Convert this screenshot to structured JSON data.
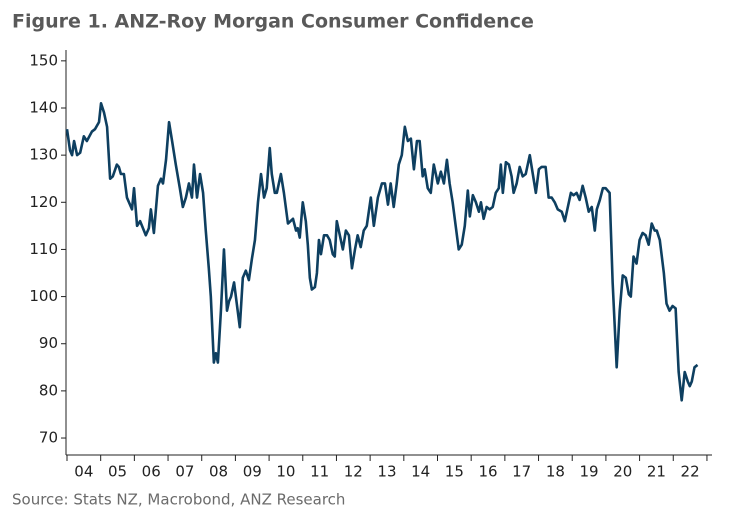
{
  "chart_data": {
    "type": "line",
    "title": "Figure 1.  ANZ-Roy Morgan Consumer Confidence",
    "source": "Source: Stats NZ, Macrobond, ANZ Research",
    "xlim": [
      2004,
      2023.15
    ],
    "ylim": [
      66.4,
      152.3
    ],
    "yticks": [
      70,
      80,
      90,
      100,
      110,
      120,
      130,
      140,
      150
    ],
    "xticks": [
      {
        "value": 2004.5,
        "label": "04"
      },
      {
        "value": 2005.5,
        "label": "05"
      },
      {
        "value": 2006.5,
        "label": "06"
      },
      {
        "value": 2007.5,
        "label": "07"
      },
      {
        "value": 2008.5,
        "label": "08"
      },
      {
        "value": 2009.5,
        "label": "09"
      },
      {
        "value": 2010.5,
        "label": "10"
      },
      {
        "value": 2011.5,
        "label": "11"
      },
      {
        "value": 2012.5,
        "label": "12"
      },
      {
        "value": 2013.5,
        "label": "13"
      },
      {
        "value": 2014.5,
        "label": "14"
      },
      {
        "value": 2015.5,
        "label": "15"
      },
      {
        "value": 2016.5,
        "label": "16"
      },
      {
        "value": 2017.5,
        "label": "17"
      },
      {
        "value": 2018.5,
        "label": "18"
      },
      {
        "value": 2019.5,
        "label": "19"
      },
      {
        "value": 2020.5,
        "label": "20"
      },
      {
        "value": 2021.5,
        "label": "21"
      },
      {
        "value": 2022.5,
        "label": "22"
      }
    ],
    "xtick_marks": [
      2004,
      2005,
      2006,
      2007,
      2008,
      2009,
      2010,
      2011,
      2012,
      2013,
      2014,
      2015,
      2016,
      2017,
      2018,
      2019,
      2020,
      2021,
      2022,
      2023
    ],
    "grid": false,
    "x": [
      2004.0,
      2004.09,
      2004.15,
      2004.21,
      2004.3,
      2004.39,
      2004.5,
      2004.59,
      2004.74,
      2004.83,
      2004.95,
      2005.01,
      2005.1,
      2005.19,
      2005.28,
      2005.36,
      2005.48,
      2005.54,
      2005.6,
      2005.69,
      2005.78,
      2005.93,
      2005.99,
      2006.08,
      2006.17,
      2006.34,
      2006.43,
      2006.49,
      2006.58,
      2006.7,
      2006.79,
      2006.85,
      2006.94,
      2007.03,
      2007.12,
      2007.23,
      2007.35,
      2007.44,
      2007.53,
      2007.62,
      2007.71,
      2007.77,
      2007.86,
      2007.95,
      2008.04,
      2008.12,
      2008.21,
      2008.27,
      2008.36,
      2008.42,
      2008.48,
      2008.57,
      2008.66,
      2008.75,
      2008.81,
      2008.87,
      2008.96,
      2009.13,
      2009.22,
      2009.31,
      2009.4,
      2009.49,
      2009.58,
      2009.67,
      2009.76,
      2009.85,
      2009.93,
      2010.02,
      2010.08,
      2010.17,
      2010.23,
      2010.35,
      2010.44,
      2010.56,
      2010.71,
      2010.8,
      2010.85,
      2010.91,
      2011.0,
      2011.09,
      2011.15,
      2011.21,
      2011.27,
      2011.36,
      2011.42,
      2011.48,
      2011.54,
      2011.63,
      2011.72,
      2011.8,
      2011.89,
      2011.95,
      2012.01,
      2012.1,
      2012.19,
      2012.28,
      2012.37,
      2012.46,
      2012.55,
      2012.63,
      2012.72,
      2012.81,
      2012.9,
      2013.02,
      2013.11,
      2013.23,
      2013.35,
      2013.44,
      2013.53,
      2013.61,
      2013.7,
      2013.79,
      2013.85,
      2013.94,
      2014.03,
      2014.12,
      2014.21,
      2014.3,
      2014.39,
      2014.47,
      2014.56,
      2014.62,
      2014.71,
      2014.8,
      2014.89,
      2015.01,
      2015.1,
      2015.19,
      2015.28,
      2015.36,
      2015.45,
      2015.54,
      2015.63,
      2015.72,
      2015.81,
      2015.9,
      2015.96,
      2016.05,
      2016.14,
      2016.23,
      2016.29,
      2016.37,
      2016.46,
      2016.55,
      2016.64,
      2016.73,
      2016.82,
      2016.88,
      2016.94,
      2017.03,
      2017.12,
      2017.2,
      2017.26,
      2017.35,
      2017.44,
      2017.53,
      2017.62,
      2017.74,
      2017.83,
      2017.92,
      2018.01,
      2018.09,
      2018.21,
      2018.3,
      2018.39,
      2018.48,
      2018.57,
      2018.69,
      2018.78,
      2018.87,
      2018.96,
      2019.04,
      2019.13,
      2019.22,
      2019.31,
      2019.4,
      2019.49,
      2019.58,
      2019.67,
      2019.73,
      2019.82,
      2019.91,
      2019.99,
      2020.11,
      2020.2,
      2020.32,
      2020.41,
      2020.5,
      2020.59,
      2020.68,
      2020.74,
      2020.82,
      2020.91,
      2021.0,
      2021.09,
      2021.18,
      2021.27,
      2021.36,
      2021.45,
      2021.51,
      2021.6,
      2021.72,
      2021.8,
      2021.89,
      2021.98,
      2022.07,
      2022.16,
      2022.25,
      2022.34,
      2022.43,
      2022.49,
      2022.55,
      2022.63,
      2022.72
    ],
    "series": [
      {
        "color": "#0e3f60",
        "values": [
          135.5,
          131,
          130,
          133,
          130,
          130.5,
          134,
          133,
          135,
          135.5,
          137,
          141,
          139,
          136,
          125,
          125.5,
          128,
          127.5,
          126,
          126,
          121,
          118.5,
          123,
          115,
          116,
          113,
          114.5,
          118.5,
          113.5,
          123.5,
          125,
          124,
          129,
          137,
          133,
          128,
          123,
          119,
          121,
          124,
          121,
          128,
          121,
          126,
          122,
          114,
          106,
          100,
          86,
          88,
          86,
          97,
          110,
          97,
          99,
          100,
          103,
          93.5,
          104,
          105.5,
          103.5,
          108,
          112,
          120,
          126,
          121,
          123,
          131.5,
          126,
          122,
          122,
          126,
          122,
          115.5,
          116.5,
          114,
          114.5,
          112.5,
          120,
          116,
          111,
          104,
          101.5,
          102,
          105,
          112,
          109,
          113,
          113,
          112,
          109,
          108.5,
          116,
          113,
          110,
          114,
          113,
          106,
          110,
          113,
          110.5,
          114,
          115,
          121,
          115,
          121,
          124,
          124,
          119.5,
          124,
          119,
          124,
          128,
          130,
          136,
          133,
          133.5,
          127,
          133,
          133,
          125.5,
          127,
          123,
          122,
          128,
          124,
          126.5,
          124,
          129,
          124,
          120,
          115,
          110,
          111,
          115,
          122.5,
          117,
          121.5,
          120,
          118,
          120,
          116.5,
          119,
          118.5,
          119,
          122,
          123,
          128,
          122,
          128.5,
          128,
          125.5,
          122,
          124,
          127.5,
          125.5,
          126,
          130,
          126,
          122,
          127,
          127.5,
          127.5,
          121,
          121,
          120,
          118.5,
          118,
          116,
          119,
          122,
          121.5,
          122,
          120.5,
          123.5,
          121,
          118,
          119,
          114,
          118.5,
          120.5,
          123,
          123,
          122,
          103,
          85,
          97,
          104.5,
          104,
          100.5,
          100,
          108.5,
          107,
          112,
          113.5,
          113,
          111,
          115.5,
          114,
          114,
          112,
          105,
          98.5,
          97,
          98,
          97.5,
          84,
          78,
          84,
          82,
          81,
          82,
          85,
          85.5
        ]
      }
    ]
  }
}
